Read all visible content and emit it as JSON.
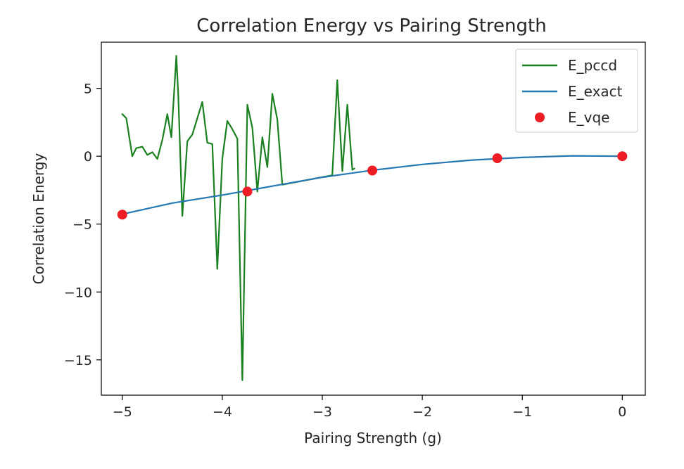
{
  "chart_data": {
    "type": "line",
    "title": "Correlation Energy vs Pairing Strength",
    "xlabel": "Pairing Strength (g)",
    "ylabel": "Correlation Energy",
    "xlim": [
      -5.21,
      0.23
    ],
    "ylim": [
      -17.6,
      8.4
    ],
    "x_ticks": [
      -5,
      -4,
      -3,
      -2,
      -1,
      0
    ],
    "y_ticks": [
      5,
      0,
      -5,
      -10,
      -15
    ],
    "x_tick_labels": [
      "−5",
      "−4",
      "−3",
      "−2",
      "−1",
      "0"
    ],
    "y_tick_labels": [
      "5",
      "0",
      "−5",
      "−10",
      "−15"
    ],
    "grid": false,
    "legend_position": "top-right",
    "series": [
      {
        "name": "E_pccd",
        "kind": "line",
        "color": "#1a8020",
        "x": [
          -5.0,
          -4.96,
          -4.9,
          -4.86,
          -4.8,
          -4.75,
          -4.7,
          -4.65,
          -4.6,
          -4.55,
          -4.51,
          -4.46,
          -4.44,
          -4.4,
          -4.35,
          -4.3,
          -4.2,
          -4.15,
          -4.1,
          -4.05,
          -4.0,
          -3.95,
          -3.9,
          -3.85,
          -3.8,
          -3.75,
          -3.7,
          -3.65,
          -3.6,
          -3.55,
          -3.5,
          -3.45,
          -3.4,
          -3.4,
          -2.9,
          -2.85,
          -2.8,
          -2.75,
          -2.7,
          -2.68
        ],
        "y": [
          3.1,
          2.8,
          0.0,
          0.6,
          0.7,
          0.1,
          0.3,
          -0.2,
          1.2,
          3.1,
          1.4,
          7.4,
          4.4,
          -4.4,
          1.1,
          1.6,
          4.0,
          1.0,
          0.9,
          -8.3,
          -0.2,
          2.6,
          2.0,
          1.3,
          -16.5,
          3.8,
          2.1,
          -2.6,
          1.4,
          -0.8,
          4.6,
          2.7,
          -2.1,
          -2.1,
          -1.4,
          5.6,
          -1.1,
          3.8,
          -1.0,
          -0.9
        ]
      },
      {
        "name": "E_exact",
        "kind": "line",
        "color": "#2678b2",
        "x": [
          -5.0,
          -4.5,
          -4.0,
          -3.5,
          -3.0,
          -2.5,
          -2.0,
          -1.5,
          -1.0,
          -0.5,
          0.0
        ],
        "y": [
          -4.27,
          -3.45,
          -2.86,
          -2.2,
          -1.55,
          -1.03,
          -0.6,
          -0.28,
          -0.09,
          0.03,
          0.0
        ]
      },
      {
        "name": "E_vqe",
        "kind": "scatter",
        "color": "#ee1c24",
        "x": [
          -5.0,
          -3.75,
          -2.5,
          -1.25,
          0.0
        ],
        "y": [
          -4.3,
          -2.6,
          -1.05,
          -0.15,
          0.0
        ]
      }
    ]
  }
}
